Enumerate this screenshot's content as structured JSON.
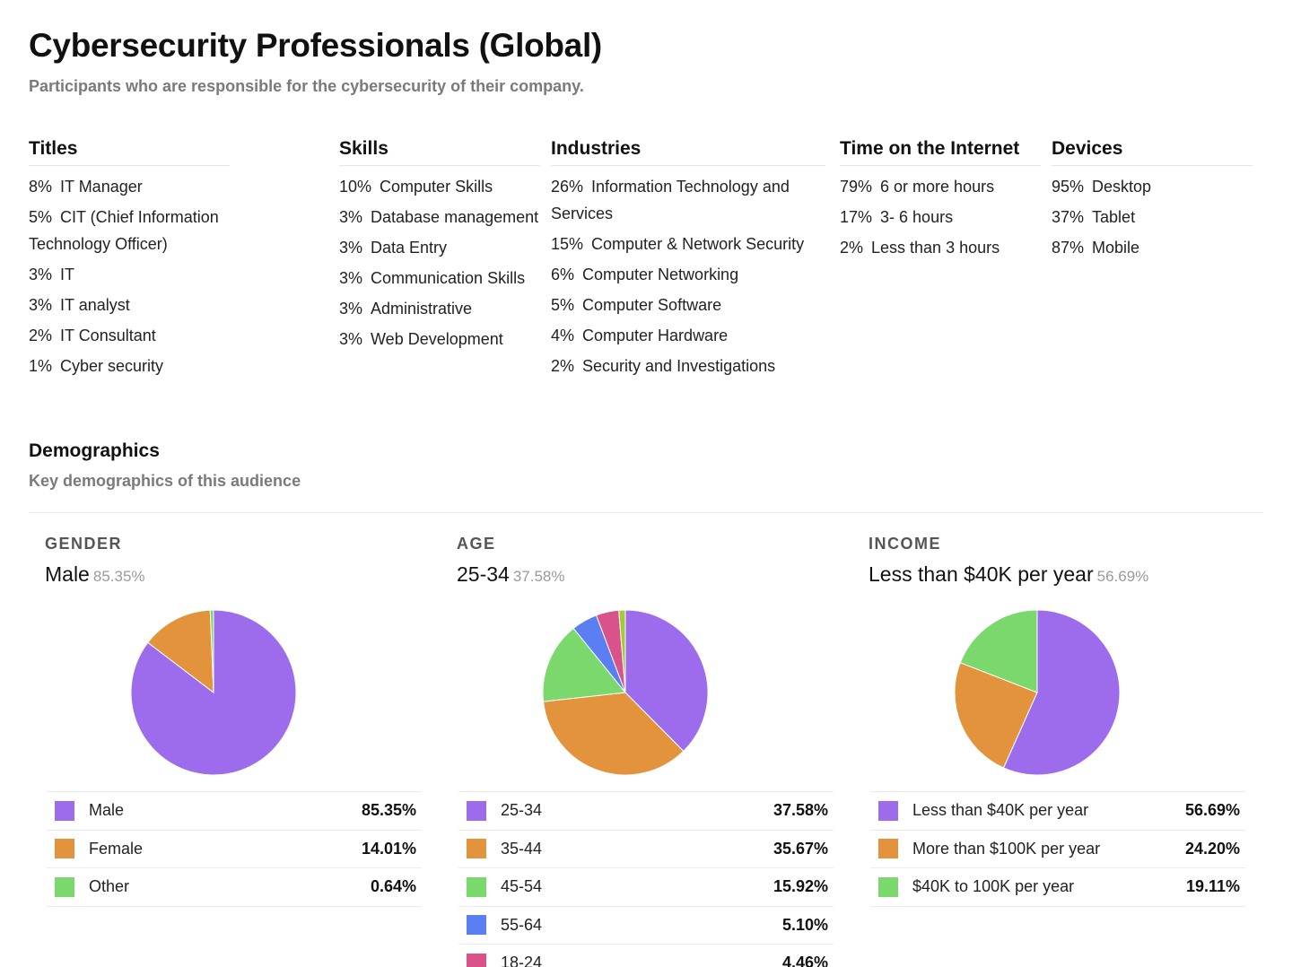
{
  "header": {
    "title": "Cybersecurity Professionals (Global)",
    "subtitle": "Participants who are responsible for the cybersecurity of their company."
  },
  "attributes": {
    "titles": {
      "heading": "Titles",
      "items": [
        {
          "pct": "8%",
          "label": "IT Manager"
        },
        {
          "pct": "5%",
          "label": "CIT (Chief Information Technology Officer)"
        },
        {
          "pct": "3%",
          "label": "IT"
        },
        {
          "pct": "3%",
          "label": "IT analyst"
        },
        {
          "pct": "2%",
          "label": "IT Consultant"
        },
        {
          "pct": "1%",
          "label": "Cyber security"
        }
      ]
    },
    "skills": {
      "heading": "Skills",
      "items": [
        {
          "pct": "10%",
          "label": "Computer Skills"
        },
        {
          "pct": "3%",
          "label": "Database management"
        },
        {
          "pct": "3%",
          "label": "Data Entry"
        },
        {
          "pct": "3%",
          "label": "Communication Skills"
        },
        {
          "pct": "3%",
          "label": "Administrative"
        },
        {
          "pct": "3%",
          "label": "Web Development"
        }
      ]
    },
    "industries": {
      "heading": "Industries",
      "items": [
        {
          "pct": "26%",
          "label": "Information Technology and Services"
        },
        {
          "pct": "15%",
          "label": "Computer & Network Security"
        },
        {
          "pct": "6%",
          "label": "Computer Networking"
        },
        {
          "pct": "5%",
          "label": "Computer Software"
        },
        {
          "pct": "4%",
          "label": "Computer Hardware"
        },
        {
          "pct": "2%",
          "label": "Security and Investigations"
        }
      ]
    },
    "time": {
      "heading": "Time on the Internet",
      "items": [
        {
          "pct": "79%",
          "label": "6 or more hours"
        },
        {
          "pct": "17%",
          "label": "3- 6 hours"
        },
        {
          "pct": "2%",
          "label": "Less than 3 hours"
        }
      ]
    },
    "devices": {
      "heading": "Devices",
      "items": [
        {
          "pct": "95%",
          "label": "Desktop"
        },
        {
          "pct": "37%",
          "label": "Tablet"
        },
        {
          "pct": "87%",
          "label": "Mobile"
        }
      ]
    }
  },
  "demographics": {
    "title": "Demographics",
    "subtitle": "Key demographics of this audience"
  },
  "chart_data": [
    {
      "type": "pie",
      "title": "GENDER",
      "top_label": "Male",
      "top_value_text": "85.35%",
      "categories": [
        "Male",
        "Female",
        "Other"
      ],
      "values": [
        85.35,
        14.01,
        0.64
      ],
      "value_text": [
        "85.35%",
        "14.01%",
        "0.64%"
      ],
      "colors": [
        "#9d6cec",
        "#e3933b",
        "#7bd86c"
      ]
    },
    {
      "type": "pie",
      "title": "AGE",
      "top_label": "25-34",
      "top_value_text": "37.58%",
      "categories": [
        "25-34",
        "35-44",
        "45-54",
        "55-64",
        "18-24"
      ],
      "values": [
        37.58,
        35.67,
        15.92,
        5.1,
        4.46
      ],
      "value_text": [
        "37.58%",
        "35.67%",
        "15.92%",
        "5.10%",
        "4.46%"
      ],
      "colors": [
        "#9d6cec",
        "#e3933b",
        "#7bd86c",
        "#5b7ff2",
        "#d9528a"
      ],
      "remainder_color": "#a6c93a"
    },
    {
      "type": "pie",
      "title": "INCOME",
      "top_label": "Less than $40K per year",
      "top_value_text": "56.69%",
      "categories": [
        "Less than $40K per year",
        "More than $100K per year",
        "$40K to 100K per year"
      ],
      "values": [
        56.69,
        24.2,
        19.11
      ],
      "value_text": [
        "56.69%",
        "24.20%",
        "19.11%"
      ],
      "colors": [
        "#9d6cec",
        "#e3933b",
        "#7bd86c"
      ]
    }
  ]
}
